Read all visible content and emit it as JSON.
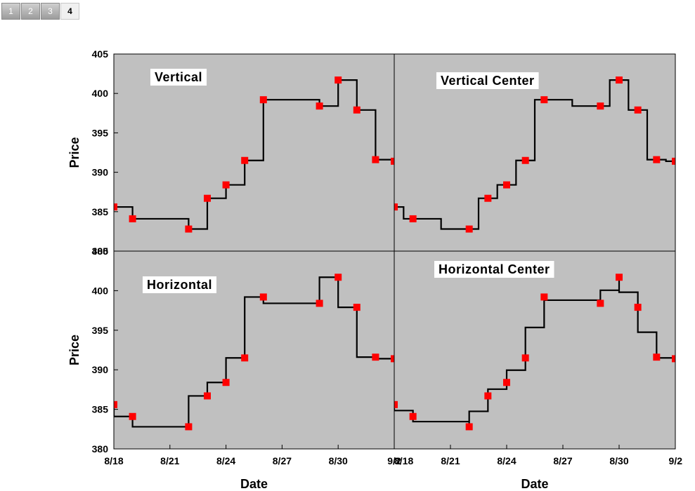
{
  "tabs": [
    {
      "label": "1",
      "active": false
    },
    {
      "label": "2",
      "active": false
    },
    {
      "label": "3",
      "active": false
    },
    {
      "label": "4",
      "active": true
    }
  ],
  "chart_data": {
    "type": "line",
    "series_color": "#ff0000",
    "line_color": "#000000",
    "plot_bg": "#c0c0c0",
    "x_ticks": [
      "8/18",
      "8/21",
      "8/24",
      "8/27",
      "8/30",
      "9/2"
    ],
    "x_tick_days": [
      0,
      3,
      6,
      9,
      12,
      15
    ],
    "y_ticks": [
      380,
      385,
      390,
      395,
      400,
      405
    ],
    "xlim_days": [
      0,
      15
    ],
    "ylim": [
      380,
      405
    ],
    "xlabel": "Date",
    "ylabel": "Price",
    "points": [
      {
        "date": "8/18",
        "day": 0,
        "price": 385.6
      },
      {
        "date": "8/19",
        "day": 1,
        "price": 384.1
      },
      {
        "date": "8/22",
        "day": 4,
        "price": 382.8
      },
      {
        "date": "8/23",
        "day": 5,
        "price": 386.7
      },
      {
        "date": "8/24",
        "day": 6,
        "price": 388.4
      },
      {
        "date": "8/25",
        "day": 7,
        "price": 391.5
      },
      {
        "date": "8/26",
        "day": 8,
        "price": 399.2
      },
      {
        "date": "8/29",
        "day": 11,
        "price": 398.4
      },
      {
        "date": "8/30",
        "day": 12,
        "price": 401.7
      },
      {
        "date": "8/31",
        "day": 13,
        "price": 397.9
      },
      {
        "date": "9/1",
        "day": 14,
        "price": 391.6
      },
      {
        "date": "9/2",
        "day": 15,
        "price": 391.4
      }
    ],
    "panels": [
      {
        "title": "Vertical",
        "step": "vertical",
        "show_ylabel": true,
        "show_xlabel": false
      },
      {
        "title": "Vertical Center",
        "step": "vcenter",
        "show_ylabel": false,
        "show_xlabel": false
      },
      {
        "title": "Horizontal",
        "step": "horizontal",
        "show_ylabel": true,
        "show_xlabel": true
      },
      {
        "title": "Horizontal Center",
        "step": "hcenter",
        "show_ylabel": false,
        "show_xlabel": true
      }
    ]
  }
}
